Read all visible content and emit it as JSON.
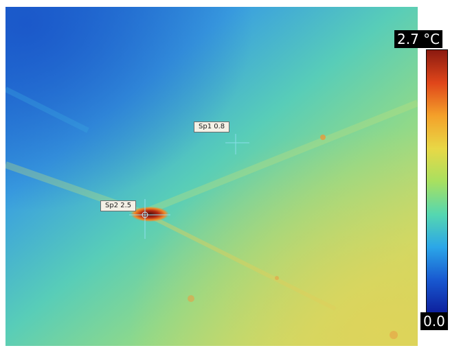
{
  "thermal_image": {
    "scale": {
      "max_label": "2.7 °C",
      "min_label": "0.0",
      "max_value": 2.7,
      "min_value": 0.0,
      "unit": "°C",
      "palette": [
        "#8b1a10",
        "#e0461a",
        "#f4a12a",
        "#e8d846",
        "#a8e060",
        "#55d7b0",
        "#2ba6e8",
        "#1858d0",
        "#0d1f9c"
      ]
    },
    "spots": [
      {
        "label": "Sp1 0.8",
        "name": "Sp1",
        "value": 0.8
      },
      {
        "label": "Sp2 2.5",
        "name": "Sp2",
        "value": 2.5
      }
    ]
  }
}
